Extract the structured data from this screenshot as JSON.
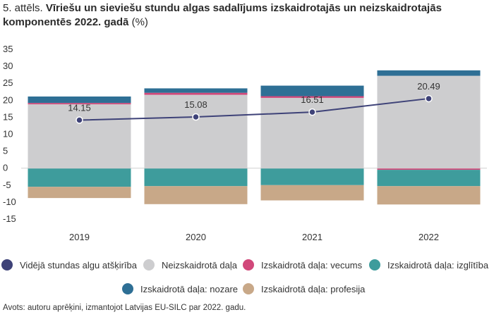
{
  "figure": {
    "number": "5. attēls.",
    "title": "Vīriešu un sieviešu stundu algas sadalījums izskaidrotajās un neizskaidrotajās komponentēs 2022. gadā",
    "unit": "(%)"
  },
  "chart_data": {
    "type": "bar",
    "stacked": true,
    "categories": [
      "2019",
      "2020",
      "2021",
      "2022"
    ],
    "ylim": [
      -15,
      35
    ],
    "yticks": [
      35,
      30,
      25,
      20,
      15,
      10,
      5,
      0,
      -5,
      -10,
      -15
    ],
    "grid": false,
    "legend_position": "bottom",
    "series": [
      {
        "name": "Neizskaidrotā daļa",
        "color": "#cdcdcf",
        "values": [
          18.8,
          21.6,
          20.7,
          27.2
        ]
      },
      {
        "name": "Izskaidrotā daļa: vecums",
        "color": "#d1487a",
        "values": [
          0.4,
          0.6,
          0.5,
          -0.5
        ]
      },
      {
        "name": "Izskaidrotā daļa: izglītība",
        "color": "#3e9c9c",
        "values": [
          -5.5,
          -5.3,
          -5.0,
          -4.8
        ]
      },
      {
        "name": "Izskaidrotā daļa: nozare",
        "color": "#2e6f95",
        "values": [
          1.9,
          1.3,
          3.1,
          1.6
        ]
      },
      {
        "name": "Izskaidrotā daļa: profesija",
        "color": "#c8a888",
        "values": [
          -3.3,
          -5.3,
          -4.5,
          -5.4
        ]
      }
    ],
    "line": {
      "name": "Vidējā stundas algu atšķirība",
      "color": "#3e4278",
      "values": [
        14.15,
        15.08,
        16.51,
        20.49
      ]
    }
  },
  "source": "Avots: autoru aprēķini, izmantojot Latvijas EU-SILC par 2022. gadu."
}
